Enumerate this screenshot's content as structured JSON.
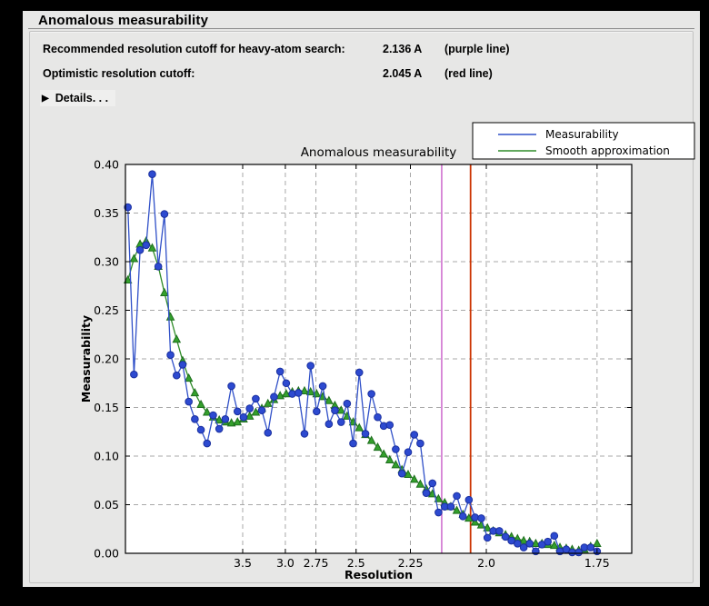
{
  "window": {
    "title": "Anomalous measurability"
  },
  "summary": {
    "rows": [
      {
        "label": "Recommended resolution cutoff for heavy-atom search:",
        "value": "2.136 A",
        "note": "(purple line)"
      },
      {
        "label": "Optimistic resolution cutoff:",
        "value": "2.045 A",
        "note": "(red line)"
      }
    ],
    "details_icon": "▶",
    "details_label": "Details. . ."
  },
  "chart_data": {
    "type": "line",
    "title": "Anomalous measurability",
    "xlabel": "Resolution",
    "ylabel": "Measurability",
    "x_scale": "1/d^2 (resolution in Angstrom, decreasing d to the right)",
    "xlim_s2": [
      0.0006,
      0.3505
    ],
    "ylim": [
      0.0,
      0.4
    ],
    "grid": true,
    "legend_position": "top-right",
    "x_ticks": {
      "labels": [
        "3.5",
        "3.0",
        "2.75",
        "2.5",
        "2.25",
        "2.0",
        "1.75"
      ],
      "values": [
        3.5,
        3.0,
        2.75,
        2.5,
        2.25,
        2.0,
        1.75
      ]
    },
    "y_ticks": [
      0.0,
      0.05,
      0.1,
      0.15,
      0.2,
      0.25,
      0.3,
      0.35,
      0.4
    ],
    "d_spacing": [
      20.988,
      12.424,
      9.672,
      8.193,
      7.234,
      6.549,
      6.027,
      5.613,
      5.274,
      4.99,
      4.748,
      4.537,
      4.353,
      4.189,
      4.042,
      3.91,
      3.79,
      3.68,
      3.58,
      3.487,
      3.401,
      3.321,
      3.247,
      3.177,
      3.112,
      3.05,
      2.992,
      2.937,
      2.885,
      2.836,
      2.789,
      2.745,
      2.702,
      2.661,
      2.623,
      2.585,
      2.55,
      2.516,
      2.483,
      2.451,
      2.421,
      2.391,
      2.363,
      2.336,
      2.31,
      2.284,
      2.259,
      2.235,
      2.212,
      2.19,
      2.168,
      2.147,
      2.126,
      2.106,
      2.087,
      2.068,
      2.05,
      2.032,
      2.014,
      1.997,
      1.981,
      1.965,
      1.949,
      1.934,
      1.919,
      1.904,
      1.89,
      1.876,
      1.862,
      1.849,
      1.835,
      1.823,
      1.81,
      1.798,
      1.785,
      1.774,
      1.762,
      1.75
    ],
    "series": [
      {
        "name": "Measurability",
        "color": "#3050c8",
        "marker": "circle",
        "marker_fill": "#2d4ad0",
        "marker_edge": "#1a2f9e",
        "values": [
          0.356,
          0.184,
          0.312,
          0.317,
          0.39,
          0.295,
          0.349,
          0.204,
          0.183,
          0.194,
          0.156,
          0.138,
          0.127,
          0.113,
          0.142,
          0.128,
          0.138,
          0.172,
          0.146,
          0.14,
          0.149,
          0.159,
          0.147,
          0.124,
          0.161,
          0.187,
          0.175,
          0.164,
          0.165,
          0.123,
          0.193,
          0.146,
          0.172,
          0.133,
          0.147,
          0.135,
          0.154,
          0.113,
          0.186,
          0.123,
          0.164,
          0.14,
          0.131,
          0.132,
          0.107,
          0.082,
          0.104,
          0.122,
          0.113,
          0.062,
          0.072,
          0.042,
          0.048,
          0.048,
          0.059,
          0.038,
          0.055,
          0.037,
          0.036,
          0.016,
          0.023,
          0.023,
          0.017,
          0.013,
          0.01,
          0.006,
          0.01,
          0.002,
          0.009,
          0.012,
          0.018,
          0.002,
          0.004,
          0.001,
          0.001,
          0.006,
          0.006,
          0.002
        ]
      },
      {
        "name": "Smooth approximation",
        "color": "#2e8b28",
        "marker": "triangle",
        "marker_fill": "#34a02c",
        "marker_edge": "#1e6e1e",
        "values": [
          0.281,
          0.303,
          0.318,
          0.321,
          0.314,
          0.295,
          0.268,
          0.243,
          0.22,
          0.198,
          0.18,
          0.165,
          0.153,
          0.145,
          0.14,
          0.137,
          0.135,
          0.134,
          0.135,
          0.138,
          0.141,
          0.145,
          0.149,
          0.154,
          0.158,
          0.162,
          0.164,
          0.166,
          0.167,
          0.167,
          0.166,
          0.164,
          0.161,
          0.157,
          0.152,
          0.147,
          0.141,
          0.135,
          0.129,
          0.122,
          0.116,
          0.109,
          0.102,
          0.096,
          0.091,
          0.086,
          0.081,
          0.076,
          0.071,
          0.066,
          0.061,
          0.056,
          0.052,
          0.048,
          0.044,
          0.04,
          0.036,
          0.032,
          0.029,
          0.026,
          0.023,
          0.021,
          0.019,
          0.017,
          0.015,
          0.013,
          0.012,
          0.01,
          0.01,
          0.009,
          0.008,
          0.006,
          0.005,
          0.004,
          0.003,
          0.004,
          0.007,
          0.01
        ]
      }
    ],
    "vlines": [
      {
        "name": "purple line",
        "d": 2.136,
        "color": "#c44fc4",
        "width": 1.3
      },
      {
        "name": "red line",
        "d": 2.045,
        "color": "#cc3300",
        "width": 1.8
      }
    ],
    "colors": {
      "plot_bg": "#ffffff",
      "grid": "#a8a8a8",
      "frame": "#000000",
      "panel_bg": "#e7e7e6"
    }
  }
}
